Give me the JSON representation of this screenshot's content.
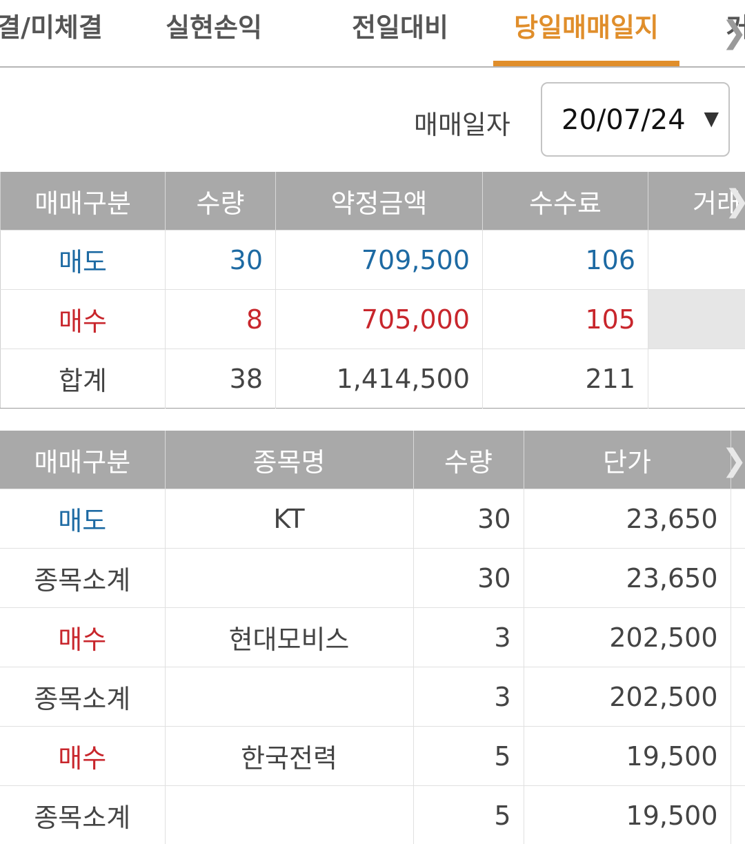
{
  "tabs": [
    {
      "label": "결/미체결"
    },
    {
      "label": "실현손익"
    },
    {
      "label": "전일대비"
    },
    {
      "label": "당일매매일지"
    },
    {
      "label": "거"
    }
  ],
  "date": {
    "label": "매매일자",
    "value": "20/07/24"
  },
  "summary": {
    "headers": [
      "매매구분",
      "수량",
      "약정금액",
      "수수료",
      "거래"
    ],
    "rows": [
      {
        "type": "매도",
        "qty": "30",
        "amount": "709,500",
        "fee": "106"
      },
      {
        "type": "매수",
        "qty": "8",
        "amount": "705,000",
        "fee": "105"
      },
      {
        "type": "합계",
        "qty": "38",
        "amount": "1,414,500",
        "fee": "211"
      }
    ]
  },
  "detail": {
    "headers": [
      "매매구분",
      "종목명",
      "수량",
      "단가"
    ],
    "rows": [
      {
        "type": "매도",
        "name": "KT",
        "qty": "30",
        "price": "23,650"
      },
      {
        "type": "종목소계",
        "name": "",
        "qty": "30",
        "price": "23,650"
      },
      {
        "type": "매수",
        "name": "현대모비스",
        "qty": "3",
        "price": "202,500"
      },
      {
        "type": "종목소계",
        "name": "",
        "qty": "3",
        "price": "202,500"
      },
      {
        "type": "매수",
        "name": "한국전력",
        "qty": "5",
        "price": "19,500"
      },
      {
        "type": "종목소계",
        "name": "",
        "qty": "5",
        "price": "19,500"
      }
    ]
  },
  "colors": {
    "accent": "#e08e2b",
    "sell": "#1d6aa3",
    "buy": "#c8262c",
    "header_bg": "#a9a9a9"
  },
  "icons": {
    "scroll_right": "chevron-right-icon",
    "date_dropdown": "caret-down-icon"
  }
}
